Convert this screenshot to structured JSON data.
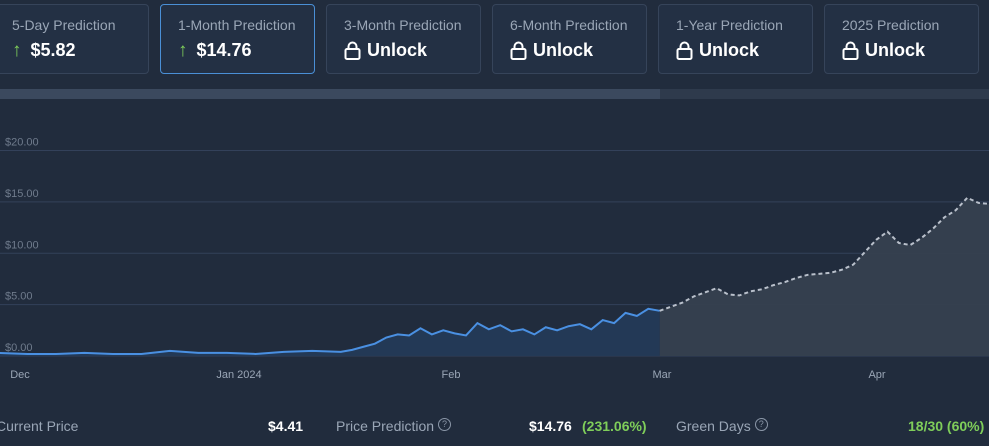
{
  "cards": [
    {
      "label": "5-Day Prediction",
      "value": "$5.82",
      "type": "up"
    },
    {
      "label": "1-Month Prediction",
      "value": "$14.76",
      "type": "up",
      "active": true
    },
    {
      "label": "3-Month Prediction",
      "value": "Unlock",
      "type": "lock"
    },
    {
      "label": "6-Month Prediction",
      "value": "Unlock",
      "type": "lock"
    },
    {
      "label": "1-Year Prediction",
      "value": "Unlock",
      "type": "lock"
    },
    {
      "label": "2025 Prediction",
      "value": "Unlock",
      "type": "lock"
    }
  ],
  "colors": {
    "accent": "#4a8fd6",
    "green": "#7fce5a",
    "historical": "#4a90e2",
    "prediction": "#b9c0cb"
  },
  "chart_data": {
    "type": "line",
    "x_labels": [
      "Dec",
      "Jan 2024",
      "Feb",
      "Mar",
      "Apr"
    ],
    "y_ticks": [
      "$0.00",
      "$5.00",
      "$10.00",
      "$15.00",
      "$20.00"
    ],
    "ylim": [
      0,
      22
    ],
    "series": [
      {
        "style": "solid",
        "x": [
          0,
          5,
          10,
          15,
          20,
          25,
          30,
          35,
          40,
          45,
          50,
          55,
          60,
          62,
          64,
          66,
          68,
          70,
          72,
          74,
          76,
          78,
          80,
          82,
          84,
          86,
          88,
          90,
          92,
          94,
          96,
          98,
          100,
          102,
          104,
          106,
          108,
          110,
          112,
          114,
          116
        ],
        "values": [
          0.3,
          0.2,
          0.2,
          0.3,
          0.2,
          0.2,
          0.5,
          0.3,
          0.3,
          0.2,
          0.4,
          0.5,
          0.4,
          0.6,
          0.9,
          1.2,
          1.8,
          2.1,
          2.0,
          2.7,
          2.1,
          2.5,
          2.2,
          2.0,
          3.2,
          2.6,
          3.0,
          2.4,
          2.6,
          2.1,
          2.8,
          2.5,
          2.9,
          3.1,
          2.6,
          3.5,
          3.2,
          4.2,
          3.9,
          4.6,
          4.4
        ]
      },
      {
        "style": "dashed",
        "x": [
          116,
          118,
          120,
          122,
          124,
          126,
          128,
          130,
          132,
          134,
          136,
          138,
          140,
          142,
          144,
          146,
          148,
          150,
          152,
          154,
          156,
          158,
          160,
          162,
          164,
          166,
          168,
          170,
          172,
          174
        ],
        "values": [
          4.4,
          4.8,
          5.2,
          5.8,
          6.2,
          6.6,
          6.0,
          5.9,
          6.3,
          6.5,
          6.9,
          7.2,
          7.6,
          7.9,
          8.0,
          8.1,
          8.4,
          8.9,
          10.1,
          11.3,
          12.1,
          11.0,
          10.8,
          11.5,
          12.4,
          13.5,
          14.2,
          15.4,
          14.9,
          14.8
        ]
      }
    ]
  },
  "footer": {
    "current_price_label": "Current Price",
    "current_price_value": "$4.41",
    "prediction_label": "Price Prediction",
    "prediction_value": "$14.76",
    "prediction_change": "(231.06%)",
    "green_days_label": "Green Days",
    "green_days_value": "18/30 (60%)"
  }
}
